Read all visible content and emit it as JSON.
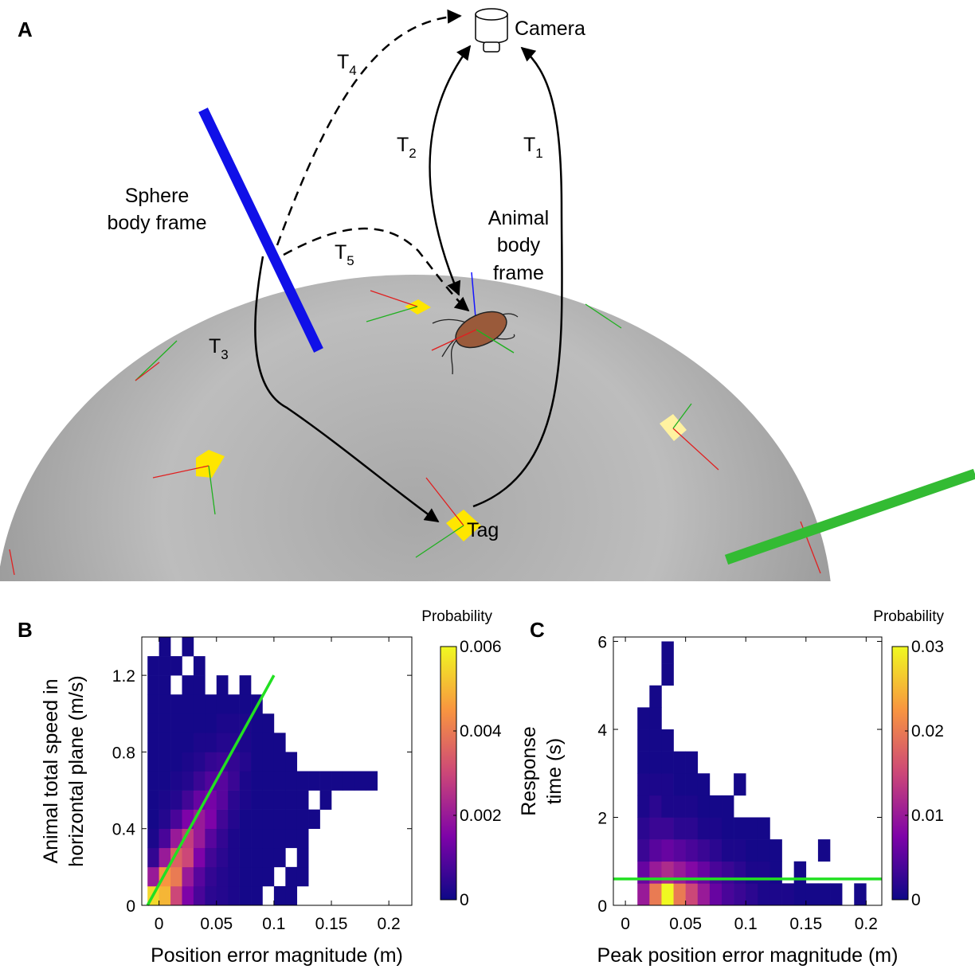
{
  "diagram": {
    "panel_label": "A",
    "camera": "Camera",
    "tag": "Tag",
    "sphere_frame": [
      "Sphere",
      "body frame"
    ],
    "animal_frame": [
      "Animal",
      "body",
      "frame"
    ],
    "transforms": [
      {
        "base": "T",
        "sub": "1"
      },
      {
        "base": "T",
        "sub": "2"
      },
      {
        "base": "T",
        "sub": "3"
      },
      {
        "base": "T",
        "sub": "4"
      },
      {
        "base": "T",
        "sub": "5"
      }
    ]
  },
  "chart_data": [
    {
      "type": "heatmap",
      "panel_label": "B",
      "xlabel": "Position error magnitude (m)",
      "ylabel": [
        "Animal total speed in",
        "horizontal plane (m/s)"
      ],
      "colorbar_label": "Probability",
      "xlim": [
        -0.015,
        0.22
      ],
      "ylim": [
        0,
        1.4
      ],
      "xticks": [
        0,
        0.05,
        0.1,
        0.15,
        0.2
      ],
      "yticks": [
        0,
        0.4,
        0.8,
        1.2
      ],
      "clim": [
        0,
        0.006
      ],
      "cticks": [
        0,
        0.002,
        0.004,
        0.006
      ],
      "colormap": [
        "#0d0887",
        "#7e03a8",
        "#cc4778",
        "#f89540",
        "#f0f921"
      ],
      "xbins": [
        -0.01,
        0,
        0.01,
        0.02,
        0.03,
        0.04,
        0.05,
        0.06,
        0.07,
        0.08,
        0.09,
        0.1,
        0.11,
        0.12,
        0.13,
        0.14,
        0.15,
        0.16,
        0.17,
        0.18,
        0.19,
        0.2
      ],
      "ybins": [
        0,
        0.1,
        0.2,
        0.3,
        0.4,
        0.5,
        0.6,
        0.7,
        0.8,
        0.9,
        1.0,
        1.1,
        1.2,
        1.3,
        1.4
      ],
      "z": [
        [
          0.0055,
          0.005,
          0.003,
          0.0015,
          0.0008,
          0.0004,
          0.0003,
          0.0002,
          0.0001,
          0.0001,
          null,
          0.0001,
          0.0001,
          null,
          null,
          null,
          null,
          null,
          null,
          null,
          null
        ],
        [
          0.002,
          0.0045,
          0.004,
          0.002,
          0.001,
          0.0005,
          0.0003,
          0.0002,
          0.0001,
          0.0001,
          0.0001,
          null,
          0.0001,
          0.0001,
          null,
          null,
          null,
          null,
          null,
          null,
          null
        ],
        [
          0.0005,
          0.002,
          0.0035,
          0.003,
          0.0015,
          0.0007,
          0.0004,
          0.0002,
          0.0001,
          0.0001,
          0.0001,
          0.0001,
          null,
          0.0001,
          null,
          null,
          null,
          null,
          null,
          null,
          null
        ],
        [
          0.0002,
          0.0008,
          0.002,
          0.0028,
          0.002,
          0.001,
          0.0005,
          0.0002,
          0.0001,
          0.0001,
          0.0001,
          0.0001,
          0.0001,
          0.0001,
          null,
          null,
          null,
          null,
          null,
          null,
          null
        ],
        [
          0.0001,
          0.0003,
          0.0008,
          0.0015,
          0.002,
          0.0015,
          0.0007,
          0.0003,
          0.0001,
          0.0001,
          0.0001,
          0.0001,
          0.0001,
          0.0001,
          0.0001,
          null,
          null,
          null,
          null,
          null,
          null
        ],
        [
          0.0001,
          0.0002,
          0.0003,
          0.0007,
          0.0012,
          0.0014,
          0.001,
          0.0004,
          0.0002,
          0.0001,
          0.0001,
          0.0001,
          0.0001,
          0.0001,
          null,
          0.0001,
          null,
          null,
          null,
          null,
          null
        ],
        [
          0.0001,
          0.0001,
          0.0002,
          0.0003,
          0.0006,
          0.0009,
          0.001,
          0.0006,
          0.0002,
          0.0001,
          0.0001,
          0.0001,
          0.0001,
          0.0001,
          0.0001,
          0.0001,
          0.0001,
          0.0001,
          0.0001,
          0.0001,
          null
        ],
        [
          0.0001,
          0.0001,
          0.0001,
          0.0002,
          0.0003,
          0.0005,
          0.0006,
          0.0005,
          0.0003,
          0.0001,
          0.0001,
          0.0001,
          0.0001,
          null,
          null,
          null,
          null,
          null,
          null,
          null,
          null
        ],
        [
          0.0001,
          0.0001,
          0.0001,
          0.0001,
          0.0002,
          0.0002,
          0.0003,
          0.0003,
          0.0002,
          0.0001,
          0.0001,
          0.0001,
          null,
          null,
          null,
          null,
          null,
          null,
          null,
          null,
          null
        ],
        [
          0.0001,
          0.0001,
          0.0001,
          0.0001,
          0.0001,
          0.0001,
          0.0002,
          0.0002,
          0.0002,
          0.0001,
          0.0001,
          null,
          null,
          null,
          null,
          null,
          null,
          null,
          null,
          null,
          null
        ],
        [
          0.0001,
          0.0001,
          0.0001,
          0.0001,
          0.0001,
          0.0001,
          0.0001,
          0.0001,
          0.0001,
          0.0001,
          null,
          null,
          null,
          null,
          null,
          null,
          null,
          null,
          null,
          null,
          null
        ],
        [
          0.0001,
          0.0001,
          null,
          0.0001,
          0.0001,
          null,
          0.0001,
          null,
          0.0001,
          null,
          null,
          null,
          null,
          null,
          null,
          null,
          null,
          null,
          null,
          null,
          null
        ],
        [
          0.0001,
          0.0001,
          0.0001,
          null,
          0.0001,
          null,
          null,
          null,
          null,
          null,
          null,
          null,
          null,
          null,
          null,
          null,
          null,
          null,
          null,
          null,
          null
        ],
        [
          null,
          0.0001,
          null,
          0.0001,
          null,
          null,
          null,
          null,
          null,
          null,
          null,
          null,
          null,
          null,
          null,
          null,
          null,
          null,
          null,
          null,
          null
        ]
      ],
      "fit_line": {
        "x": [
          -0.01,
          0.1
        ],
        "y": [
          0,
          1.2
        ],
        "color": "#22e022"
      }
    },
    {
      "type": "heatmap",
      "panel_label": "C",
      "xlabel": "Peak position error magnitude (m)",
      "ylabel": [
        "Response",
        "time (s)"
      ],
      "colorbar_label": "Probability",
      "xlim": [
        -0.01,
        0.213
      ],
      "ylim": [
        0,
        6.1
      ],
      "xticks": [
        0,
        0.05,
        0.1,
        0.15,
        0.2
      ],
      "yticks": [
        0,
        2,
        4,
        6
      ],
      "clim": [
        0,
        0.03
      ],
      "cticks": [
        0,
        0.01,
        0.02,
        0.03
      ],
      "colormap": [
        "#0d0887",
        "#7e03a8",
        "#cc4778",
        "#f89540",
        "#f0f921"
      ],
      "xbins": [
        0.01,
        0.02,
        0.03,
        0.04,
        0.05,
        0.06,
        0.07,
        0.08,
        0.09,
        0.1,
        0.11,
        0.12,
        0.13,
        0.14,
        0.15,
        0.16,
        0.17,
        0.18,
        0.19,
        0.2,
        0.21
      ],
      "ybins": [
        0,
        0.5,
        1,
        1.5,
        2,
        2.5,
        3,
        3.5,
        4,
        4.5,
        5,
        5.5,
        6
      ],
      "z": [
        [
          0.01,
          0.02,
          0.03,
          0.02,
          0.015,
          0.01,
          0.006,
          0.004,
          0.003,
          0.002,
          0.001,
          0.001,
          0.001,
          0.0005,
          0.0005,
          0.0005,
          0.0005,
          null,
          0.0005,
          null
        ],
        [
          0.006,
          0.01,
          0.012,
          0.01,
          0.008,
          0.006,
          0.004,
          0.003,
          0.002,
          0.001,
          0.001,
          0.0005,
          null,
          0.0005,
          null,
          null,
          null,
          null,
          null,
          null
        ],
        [
          0.003,
          0.005,
          0.006,
          0.005,
          0.004,
          0.003,
          0.002,
          0.001,
          0.001,
          0.0005,
          0.0005,
          0.0005,
          null,
          null,
          null,
          0.0005,
          null,
          null,
          null,
          null
        ],
        [
          0.002,
          0.003,
          0.003,
          0.002,
          0.002,
          0.001,
          0.001,
          0.0005,
          0.0005,
          0.0005,
          0.0005,
          null,
          null,
          null,
          null,
          null,
          null,
          null,
          null,
          null
        ],
        [
          0.001,
          0.002,
          0.001,
          0.001,
          0.001,
          0.0005,
          0.0005,
          0.0005,
          null,
          null,
          null,
          null,
          null,
          null,
          null,
          null,
          null,
          null,
          null,
          null
        ],
        [
          0.001,
          0.001,
          0.001,
          0.0005,
          0.0005,
          0.0005,
          null,
          null,
          0.0005,
          null,
          null,
          null,
          null,
          null,
          null,
          null,
          null,
          null,
          null,
          null
        ],
        [
          0.0005,
          0.0005,
          0.0005,
          0.0005,
          0.0005,
          null,
          null,
          null,
          null,
          null,
          null,
          null,
          null,
          null,
          null,
          null,
          null,
          null,
          null,
          null
        ],
        [
          0.0005,
          0.0005,
          0.0005,
          null,
          null,
          null,
          null,
          null,
          null,
          null,
          null,
          null,
          null,
          null,
          null,
          null,
          null,
          null,
          null,
          null
        ],
        [
          0.0005,
          0.0005,
          null,
          null,
          null,
          null,
          null,
          null,
          null,
          null,
          null,
          null,
          null,
          null,
          null,
          null,
          null,
          null,
          null,
          null
        ],
        [
          null,
          0.0005,
          null,
          null,
          null,
          null,
          null,
          null,
          null,
          null,
          null,
          null,
          null,
          null,
          null,
          null,
          null,
          null,
          null,
          null
        ],
        [
          null,
          null,
          0.0005,
          null,
          null,
          null,
          null,
          null,
          null,
          null,
          null,
          null,
          null,
          null,
          null,
          null,
          null,
          null,
          null,
          null
        ],
        [
          null,
          null,
          0.0005,
          null,
          null,
          null,
          null,
          null,
          null,
          null,
          null,
          null,
          null,
          null,
          null,
          null,
          null,
          null,
          null,
          null
        ]
      ],
      "fit_line": {
        "x": [
          -0.01,
          0.213
        ],
        "y": [
          0.6,
          0.6
        ],
        "color": "#22e022"
      }
    }
  ]
}
